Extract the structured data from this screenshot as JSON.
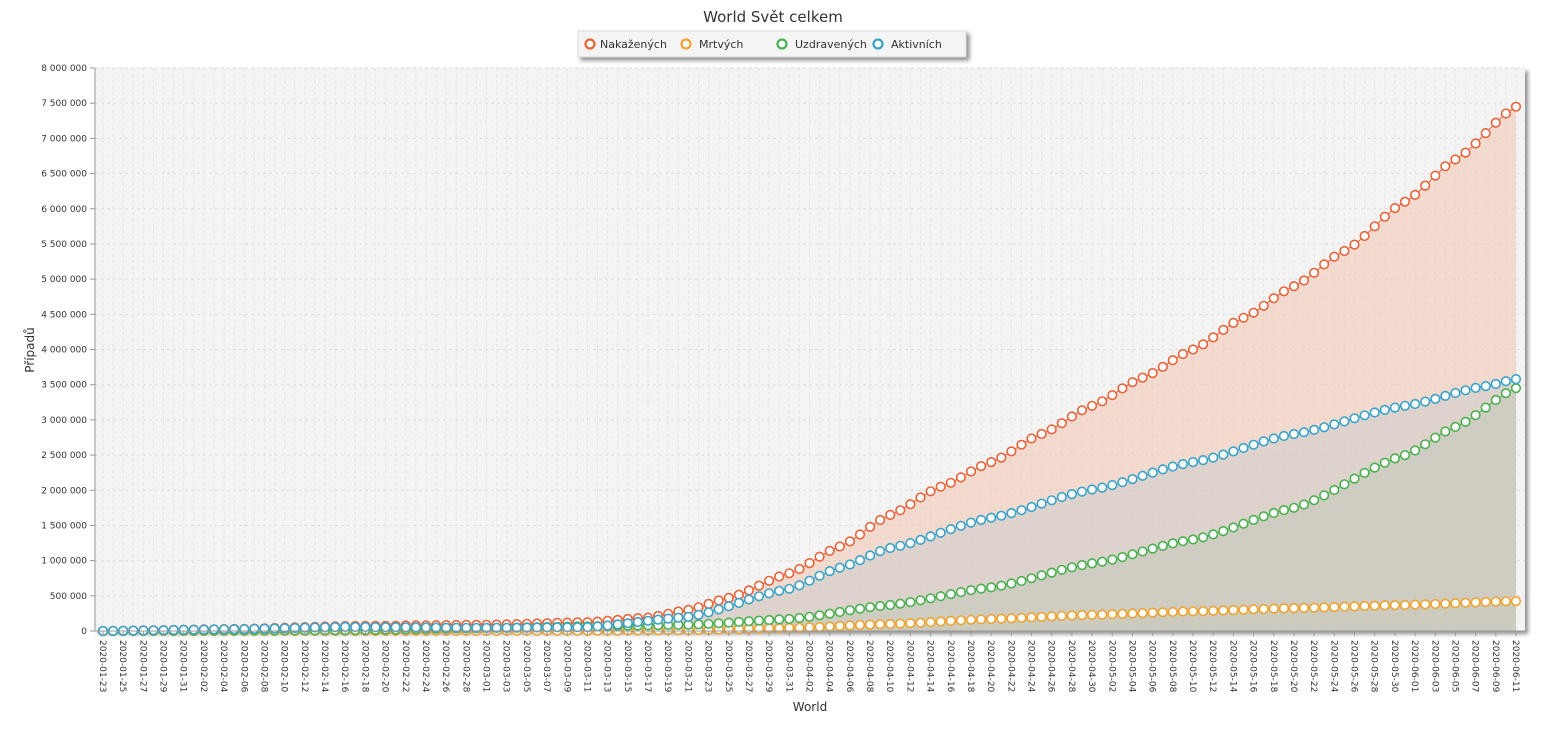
{
  "chart_data": {
    "type": "area",
    "title": "World Svět celkem",
    "xlabel": "World",
    "ylabel": "Případů",
    "ylim": [
      0,
      8000000
    ],
    "y_ticks": [
      "0",
      "500 000",
      "1 000 000",
      "1 500 000",
      "2 000 000",
      "2 500 000",
      "3 000 000",
      "3 500 000",
      "4 000 000",
      "4 500 000",
      "5 000 000",
      "5 500 000",
      "6 000 000",
      "6 500 000",
      "7 000 000",
      "7 500 000",
      "8 000 000"
    ],
    "x_ticks": [
      "2020-01-23",
      "2020-01-25",
      "2020-01-27",
      "2020-01-29",
      "2020-01-31",
      "2020-02-02",
      "2020-02-04",
      "2020-02-06",
      "2020-02-08",
      "2020-02-10",
      "2020-02-12",
      "2020-02-14",
      "2020-02-16",
      "2020-02-18",
      "2020-02-20",
      "2020-02-22",
      "2020-02-24",
      "2020-02-26",
      "2020-02-28",
      "2020-03-01",
      "2020-03-03",
      "2020-03-05",
      "2020-03-07",
      "2020-03-09",
      "2020-03-11",
      "2020-03-13",
      "2020-03-15",
      "2020-03-17",
      "2020-03-19",
      "2020-03-21",
      "2020-03-23",
      "2020-03-25",
      "2020-03-27",
      "2020-03-29",
      "2020-03-31",
      "2020-04-02",
      "2020-04-04",
      "2020-04-06",
      "2020-04-08",
      "2020-04-10",
      "2020-04-12",
      "2020-04-14",
      "2020-04-16",
      "2020-04-18",
      "2020-04-20",
      "2020-04-22",
      "2020-04-24",
      "2020-04-26",
      "2020-04-28",
      "2020-04-30",
      "2020-05-02",
      "2020-05-04",
      "2020-05-06",
      "2020-05-08",
      "2020-05-10",
      "2020-05-12",
      "2020-05-14",
      "2020-05-16",
      "2020-05-18",
      "2020-05-20",
      "2020-05-22",
      "2020-05-24",
      "2020-05-26",
      "2020-05-28",
      "2020-05-30",
      "2020-06-01",
      "2020-06-03",
      "2020-06-05",
      "2020-06-07",
      "2020-06-09",
      "2020-06-11"
    ],
    "grid": true,
    "legend_position": "top-center",
    "x_start": "2020-01-23",
    "x_end": "2020-06-11",
    "series": [
      {
        "name": "Nakažených",
        "color": "#e8633a",
        "fill": "#f2c4b0",
        "anchors": [
          [
            "2020-01-23",
            600
          ],
          [
            "2020-02-05",
            28000
          ],
          [
            "2020-02-16",
            70000
          ],
          [
            "2020-03-01",
            88000
          ],
          [
            "2020-03-11",
            125000
          ],
          [
            "2020-03-17",
            190000
          ],
          [
            "2020-03-21",
            300000
          ],
          [
            "2020-03-25",
            470000
          ],
          [
            "2020-03-31",
            820000
          ],
          [
            "2020-04-05",
            1200000
          ],
          [
            "2020-04-10",
            1650000
          ],
          [
            "2020-04-15",
            2050000
          ],
          [
            "2020-04-20",
            2400000
          ],
          [
            "2020-04-25",
            2800000
          ],
          [
            "2020-04-30",
            3200000
          ],
          [
            "2020-05-05",
            3600000
          ],
          [
            "2020-05-10",
            4000000
          ],
          [
            "2020-05-15",
            4450000
          ],
          [
            "2020-05-20",
            4900000
          ],
          [
            "2020-05-25",
            5400000
          ],
          [
            "2020-05-31",
            6100000
          ],
          [
            "2020-06-05",
            6700000
          ],
          [
            "2020-06-11",
            7450000
          ]
        ]
      },
      {
        "name": "Mrtvých",
        "color": "#f0a230",
        "fill": "#d9c9a2",
        "anchors": [
          [
            "2020-01-23",
            17
          ],
          [
            "2020-02-16",
            1700
          ],
          [
            "2020-03-11",
            4600
          ],
          [
            "2020-03-21",
            13000
          ],
          [
            "2020-03-31",
            42000
          ],
          [
            "2020-04-10",
            100000
          ],
          [
            "2020-04-20",
            170000
          ],
          [
            "2020-04-30",
            230000
          ],
          [
            "2020-05-10",
            280000
          ],
          [
            "2020-05-20",
            325000
          ],
          [
            "2020-05-31",
            370000
          ],
          [
            "2020-06-11",
            425000
          ]
        ]
      },
      {
        "name": "Uzdravených",
        "color": "#4bb050",
        "fill": "#b8c4a4",
        "anchors": [
          [
            "2020-01-23",
            28
          ],
          [
            "2020-02-16",
            10000
          ],
          [
            "2020-03-01",
            42000
          ],
          [
            "2020-03-11",
            67000
          ],
          [
            "2020-03-21",
            88000
          ],
          [
            "2020-03-31",
            170000
          ],
          [
            "2020-04-10",
            370000
          ],
          [
            "2020-04-20",
            620000
          ],
          [
            "2020-04-30",
            960000
          ],
          [
            "2020-05-10",
            1300000
          ],
          [
            "2020-05-20",
            1750000
          ],
          [
            "2020-05-31",
            2500000
          ],
          [
            "2020-06-05",
            2900000
          ],
          [
            "2020-06-11",
            3450000
          ]
        ]
      },
      {
        "name": "Aktivních",
        "color": "#3ba3c9",
        "fill": "#cccccc",
        "anchors": [
          [
            "2020-01-23",
            550
          ],
          [
            "2020-02-05",
            25000
          ],
          [
            "2020-02-16",
            58000
          ],
          [
            "2020-03-01",
            44000
          ],
          [
            "2020-03-11",
            55000
          ],
          [
            "2020-03-21",
            200000
          ],
          [
            "2020-03-31",
            600000
          ],
          [
            "2020-04-05",
            900000
          ],
          [
            "2020-04-10",
            1180000
          ],
          [
            "2020-04-20",
            1610000
          ],
          [
            "2020-04-30",
            2010000
          ],
          [
            "2020-05-10",
            2400000
          ],
          [
            "2020-05-20",
            2800000
          ],
          [
            "2020-05-31",
            3200000
          ],
          [
            "2020-06-08",
            3480000
          ],
          [
            "2020-06-11",
            3580000
          ]
        ]
      }
    ]
  }
}
